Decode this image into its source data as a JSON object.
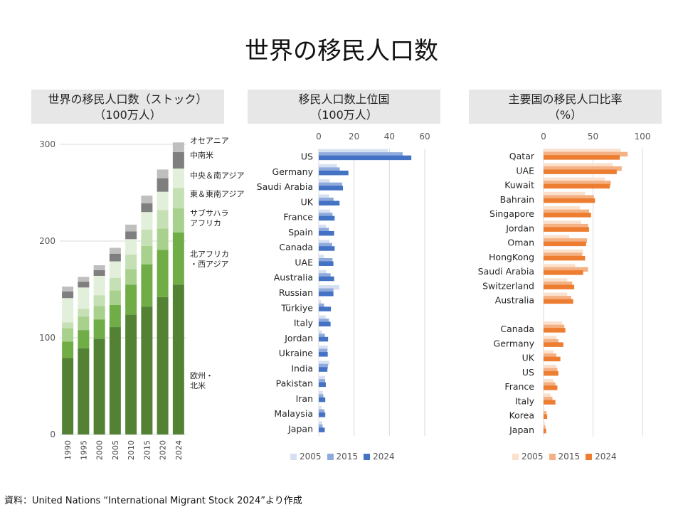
{
  "title": "世界の移民人口数",
  "source": "資料：United Nations “International Migrant Stock 2024”より作成",
  "panels": {
    "p1": {
      "line1": "世界の移民人口数（ストック）",
      "line2": "（100万人）"
    },
    "p2": {
      "line1": "移民人口数上位国",
      "line2": "（100万人）"
    },
    "p3": {
      "line1": "主要国の移民人口比率",
      "line2": "（%）"
    }
  },
  "legend2": [
    "2005",
    "2015",
    "2024"
  ],
  "legend3": [
    "2005",
    "2015",
    "2024"
  ],
  "colors": {
    "blue": [
      "#d5e1f2",
      "#8faadc",
      "#4472c4"
    ],
    "orange": [
      "#fbe0cc",
      "#f4b183",
      "#ed7d31"
    ],
    "stack": [
      "#548235",
      "#70ad47",
      "#a9d18e",
      "#e2efda",
      "#7f7f7f",
      "#bfbfbf"
    ]
  },
  "chart_data": [
    {
      "type": "bar",
      "stacked": true,
      "categories": [
        "1990",
        "1995",
        "2000",
        "2005",
        "2010",
        "2015",
        "2020",
        "2024"
      ],
      "ylim": [
        0,
        300
      ],
      "yticks": [
        "0",
        "100",
        "200",
        "300"
      ],
      "series": [
        {
          "name": "欧州・北米",
          "label": [
            "欧州・",
            "北米"
          ],
          "values": [
            79,
            89,
            99,
            111,
            124,
            132,
            142,
            155
          ]
        },
        {
          "name": "北アフリカ・西アジア",
          "label": [
            "北アフリカ",
            "・西アジア"
          ],
          "values": [
            17,
            19,
            20,
            23,
            31,
            44,
            49,
            54
          ]
        },
        {
          "name": "サブサハラアフリカ",
          "label": [
            "サブサハラ",
            "アフリカ"
          ],
          "values": [
            14,
            14,
            14,
            15,
            16,
            19,
            22,
            25
          ]
        },
        {
          "name": "東＆東南アジア",
          "label": [
            "東＆東南アジア"
          ],
          "values": [
            6,
            8,
            11,
            13,
            15,
            17,
            19,
            21
          ]
        },
        {
          "name": "中央＆南アジア",
          "label": [
            "中央＆南アジア"
          ],
          "values": [
            25,
            22,
            20,
            17,
            16,
            18,
            19,
            20
          ]
        },
        {
          "name": "中南米",
          "label": [
            "中南米"
          ],
          "values": [
            7,
            6,
            6,
            8,
            8,
            9,
            14,
            17
          ]
        },
        {
          "name": "オセアニア",
          "label": [
            "オセアニア"
          ],
          "values": [
            5,
            5,
            5,
            6,
            7,
            8,
            9,
            10
          ]
        }
      ]
    },
    {
      "type": "bar",
      "orientation": "horizontal",
      "categories": [
        "US",
        "Germany",
        "Saudi Arabia",
        "UK",
        "France",
        "Spain",
        "Canada",
        "UAE",
        "Australia",
        "Russian",
        "Türkiye",
        "Italy",
        "Jordan",
        "Ukraine",
        "India",
        "Pakistan",
        "Iran",
        "Malaysia",
        "Japan"
      ],
      "xlim": [
        0,
        60
      ],
      "xticks": [
        "0",
        "20",
        "40",
        "60"
      ],
      "series": [
        {
          "name": "2005",
          "values": [
            39.3,
            10.3,
            6.2,
            5.9,
            6.5,
            4.1,
            6.1,
            2.9,
            4.3,
            11.7,
            1.3,
            3.9,
            1.9,
            5.1,
            5.9,
            3.6,
            2.3,
            1.6,
            2.0
          ]
        },
        {
          "name": "2015",
          "values": [
            47.5,
            11.9,
            13.2,
            8.4,
            7.8,
            5.8,
            7.6,
            7.8,
            6.7,
            8.3,
            3.0,
            5.8,
            3.5,
            4.9,
            5.2,
            3.6,
            2.6,
            3.2,
            2.2
          ]
        },
        {
          "name": "2024",
          "values": [
            52.4,
            16.8,
            13.7,
            11.8,
            9.0,
            8.7,
            9.0,
            8.3,
            8.7,
            8.3,
            6.9,
            6.7,
            5.3,
            5.1,
            4.9,
            4.0,
            3.7,
            3.7,
            3.4
          ]
        }
      ]
    },
    {
      "type": "bar",
      "orientation": "horizontal",
      "categories": [
        "Qatar",
        "UAE",
        "Kuwait",
        "Bahrain",
        "Singapore",
        "Jordan",
        "Oman",
        "HongKong",
        "Saudi Arabia",
        "Switzerland",
        "Australia",
        "",
        "Canada",
        "Germany",
        "UK",
        "US",
        "France",
        "Italy",
        "Korea",
        "Japan"
      ],
      "xlim": [
        0,
        100
      ],
      "xticks": [
        "0",
        "50",
        "100"
      ],
      "series": [
        {
          "name": "2005",
          "values": [
            78,
            70,
            62,
            42,
            37,
            38,
            26,
            40,
            32,
            24,
            24,
            null,
            19,
            13,
            10,
            13,
            10,
            7,
            1,
            1.5
          ]
        },
        {
          "name": "2015",
          "values": [
            85,
            79,
            68,
            51,
            46,
            45,
            44,
            39,
            45,
            29,
            28,
            null,
            21,
            15,
            13,
            14,
            12,
            9,
            3,
            2
          ]
        },
        {
          "name": "2024",
          "values": [
            77,
            74,
            67,
            52,
            48,
            46,
            43,
            42,
            40,
            31,
            30,
            null,
            22,
            20,
            17,
            15,
            14,
            12,
            3.7,
            2.7
          ]
        }
      ]
    }
  ]
}
